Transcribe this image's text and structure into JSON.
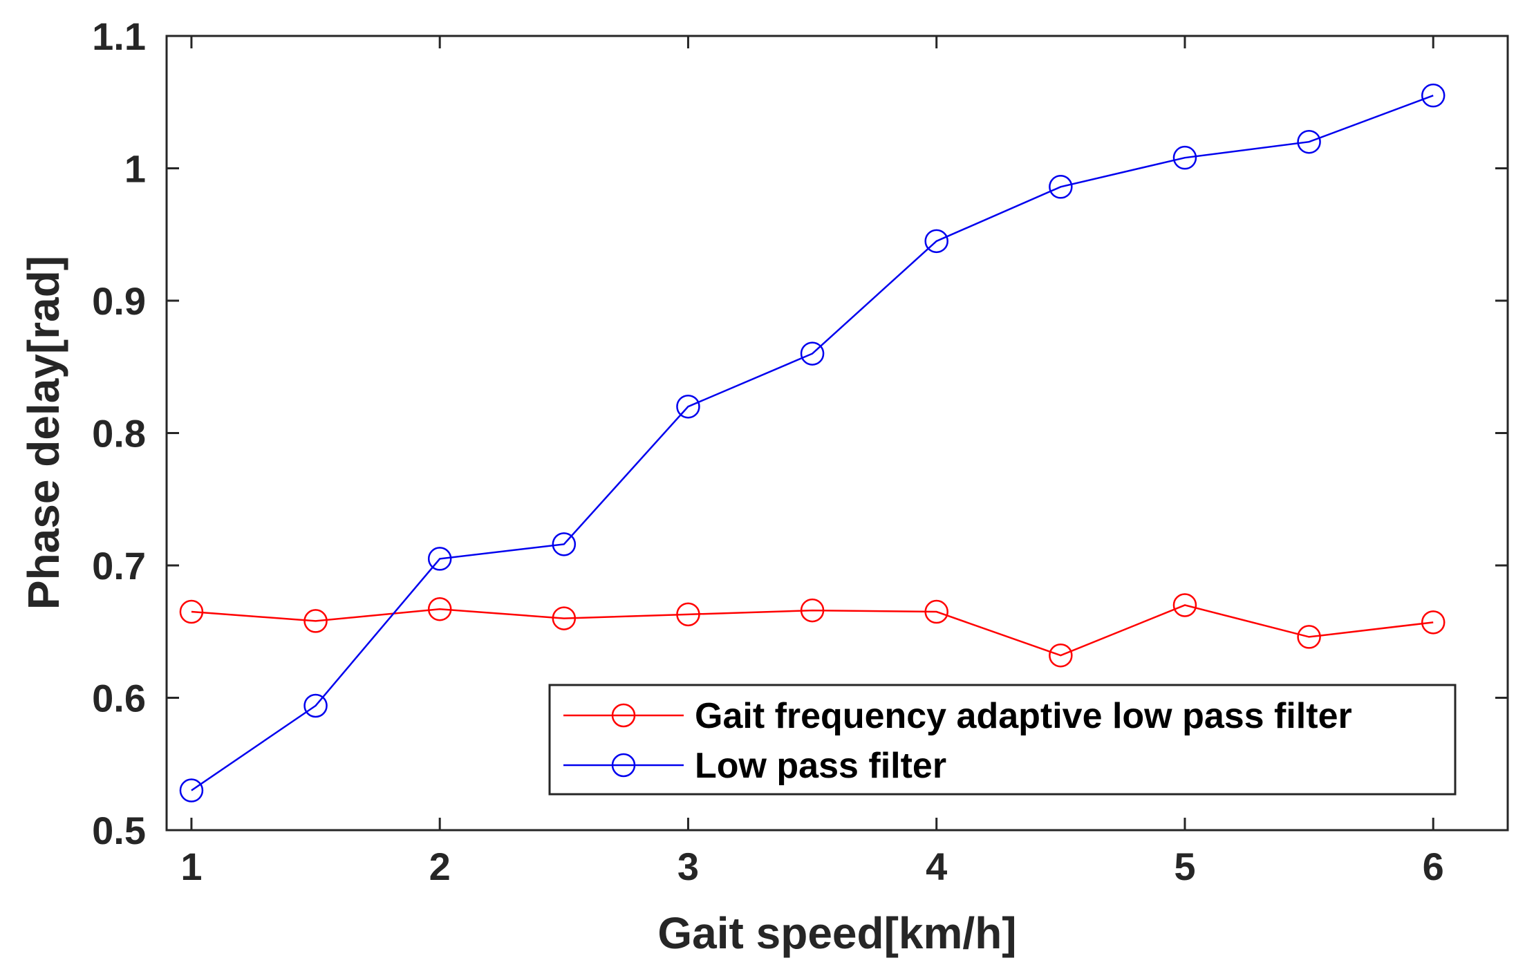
{
  "chart_data": {
    "type": "line",
    "title": "",
    "xlabel": "Gait speed[km/h]",
    "ylabel": "Phase delay[rad]",
    "xlim": [
      0.9,
      6.3
    ],
    "ylim": [
      0.5,
      1.1
    ],
    "x_ticks": [
      1,
      2,
      3,
      4,
      5,
      6
    ],
    "x_tick_labels": [
      "1",
      "2",
      "3",
      "4",
      "5",
      "6"
    ],
    "y_ticks": [
      0.5,
      0.6,
      0.7,
      0.8,
      0.9,
      1.0,
      1.1
    ],
    "y_tick_labels": [
      "0.5",
      "0.6",
      "0.7",
      "0.8",
      "0.9",
      "1",
      "1.1"
    ],
    "grid": false,
    "legend_position": "bottom-right",
    "x": [
      1,
      1.5,
      2,
      2.5,
      3,
      3.5,
      4,
      4.5,
      5,
      5.5,
      6
    ],
    "series": [
      {
        "name": "Gait frequency adaptive low pass filter",
        "color": "#ff0000",
        "marker": "circle",
        "values": [
          0.665,
          0.658,
          0.667,
          0.66,
          0.663,
          0.666,
          0.665,
          0.632,
          0.67,
          0.646,
          0.657
        ]
      },
      {
        "name": "Low pass filter",
        "color": "#0000ee",
        "marker": "circle",
        "values": [
          0.53,
          0.594,
          0.705,
          0.716,
          0.82,
          0.86,
          0.945,
          0.986,
          1.008,
          1.02,
          1.055
        ]
      }
    ]
  }
}
